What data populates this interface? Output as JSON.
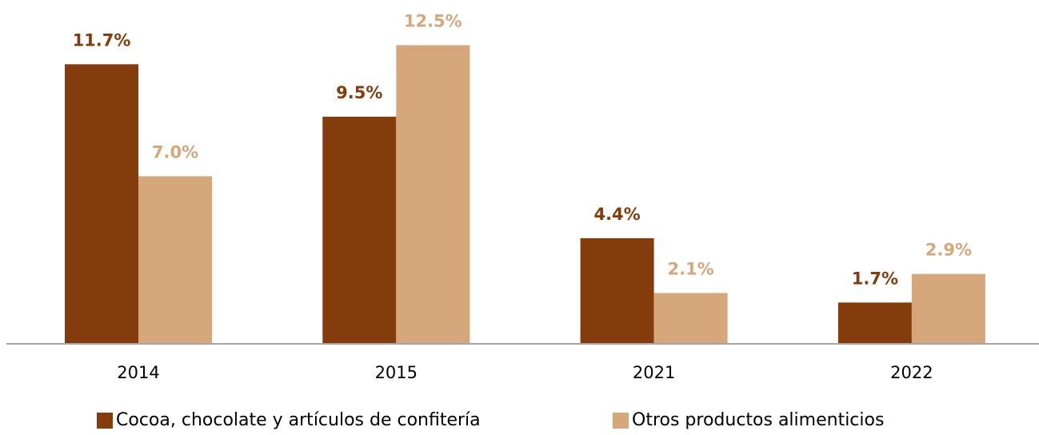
{
  "chart_data": {
    "type": "bar",
    "categories": [
      "2014",
      "2015",
      "2021",
      "2022"
    ],
    "series": [
      {
        "name": "Cocoa, chocolate y artículos de confitería",
        "color": "#843c0c",
        "values": [
          11.7,
          9.5,
          4.4,
          1.7
        ],
        "value_labels": [
          "11.7%",
          "9.5%",
          "4.4%",
          "1.7%"
        ]
      },
      {
        "name": "Otros productos alimenticios",
        "color": "#d5a77b",
        "values": [
          7.0,
          12.5,
          2.1,
          2.9
        ],
        "value_labels": [
          "7.0%",
          "12.5%",
          "2.1%",
          "2.9%"
        ]
      }
    ]
  }
}
